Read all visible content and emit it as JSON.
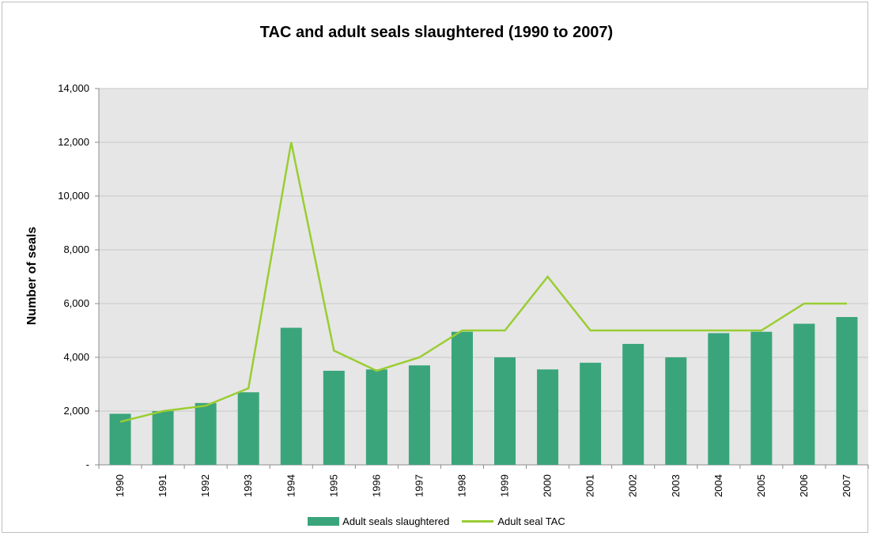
{
  "chart_data": {
    "type": "bar",
    "title": "TAC and adult seals slaughtered (1990 to 2007)",
    "xlabel": "",
    "ylabel": "Number of seals",
    "ylim": [
      0,
      14000
    ],
    "yticks": [
      0,
      2000,
      4000,
      6000,
      8000,
      10000,
      12000,
      14000
    ],
    "ytick_labels": [
      "-",
      "2,000",
      "4,000",
      "6,000",
      "8,000",
      "10,000",
      "12,000",
      "14,000"
    ],
    "categories": [
      "1990",
      "1991",
      "1992",
      "1993",
      "1994",
      "1995",
      "1996",
      "1997",
      "1998",
      "1999",
      "2000",
      "2001",
      "2002",
      "2003",
      "2004",
      "2005",
      "2006",
      "2007"
    ],
    "grid": true,
    "legend_position": "bottom",
    "series": [
      {
        "name": "Adult seals slaughtered",
        "type": "bar",
        "color": "#3aa57b",
        "values": [
          1900,
          2000,
          2300,
          2700,
          5100,
          3500,
          3550,
          3700,
          4950,
          4000,
          3550,
          3800,
          4500,
          4000,
          4900,
          4950,
          5250,
          5500
        ]
      },
      {
        "name": "Adult seal TAC",
        "type": "line",
        "color": "#9acd32",
        "values": [
          1600,
          2000,
          2200,
          2850,
          12000,
          4250,
          3500,
          4000,
          5000,
          5000,
          7000,
          5000,
          5000,
          5000,
          5000,
          5000,
          6000,
          6000
        ]
      }
    ]
  },
  "colors": {
    "plot_background": "#e6e6e6",
    "gridline": "#c8c8c8"
  }
}
